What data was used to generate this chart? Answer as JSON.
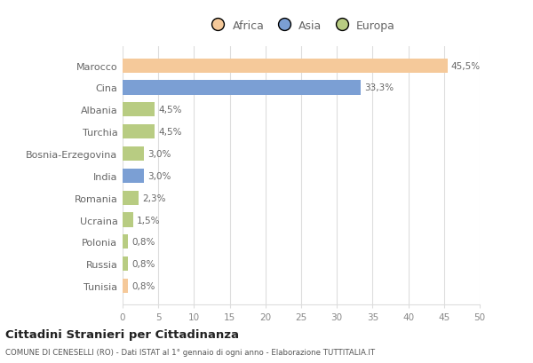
{
  "categories": [
    "Marocco",
    "Cina",
    "Albania",
    "Turchia",
    "Bosnia-Erzegovina",
    "India",
    "Romania",
    "Ucraina",
    "Polonia",
    "Russia",
    "Tunisia"
  ],
  "values": [
    45.5,
    33.3,
    4.5,
    4.5,
    3.0,
    3.0,
    2.3,
    1.5,
    0.8,
    0.8,
    0.8
  ],
  "labels": [
    "45,5%",
    "33,3%",
    "4,5%",
    "4,5%",
    "3,0%",
    "3,0%",
    "2,3%",
    "1,5%",
    "0,8%",
    "0,8%",
    "0,8%"
  ],
  "colors": [
    "#f5c99a",
    "#7b9fd4",
    "#b8cc82",
    "#b8cc82",
    "#b8cc82",
    "#7b9fd4",
    "#b8cc82",
    "#b8cc82",
    "#b8cc82",
    "#b8cc82",
    "#f5c99a"
  ],
  "continent_order": [
    "Africa",
    "Asia",
    "Europa"
  ],
  "continent_colors": {
    "Africa": "#f5c99a",
    "Asia": "#7b9fd4",
    "Europa": "#b8cc82"
  },
  "xlim": [
    0,
    50
  ],
  "xticks": [
    0,
    5,
    10,
    15,
    20,
    25,
    30,
    35,
    40,
    45,
    50
  ],
  "title1": "Cittadini Stranieri per Cittadinanza",
  "title2": "COMUNE DI CENESELLI (RO) - Dati ISTAT al 1° gennaio di ogni anno - Elaborazione TUTTITALIA.IT",
  "bg_color": "#ffffff",
  "grid_color": "#dddddd",
  "label_color": "#666666",
  "tick_label_color": "#888888"
}
